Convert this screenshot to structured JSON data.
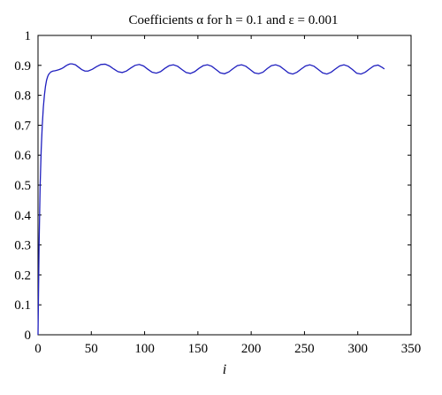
{
  "chart_data": {
    "type": "line",
    "title": "Coefficients α for h = 0.1 and ε = 0.001",
    "xlabel": "i",
    "ylabel": "",
    "xlim": [
      0,
      350
    ],
    "ylim": [
      0,
      1
    ],
    "x_ticks": [
      0,
      50,
      100,
      150,
      200,
      250,
      300,
      350
    ],
    "y_ticks": [
      0,
      0.1,
      0.2,
      0.3,
      0.4,
      0.5,
      0.6,
      0.7,
      0.8,
      0.9,
      1
    ],
    "grid": false,
    "line_color": "#1f1fbf",
    "series": [
      {
        "x": [
          0,
          1,
          2,
          3,
          4,
          5,
          6,
          7,
          8,
          9,
          10,
          12,
          14,
          16,
          18,
          20,
          22,
          24,
          26,
          28,
          30,
          32,
          35,
          38,
          41,
          44,
          47,
          51,
          55,
          59,
          63,
          67,
          71,
          75,
          79,
          83,
          87,
          91,
          95,
          99,
          103,
          107,
          111,
          115,
          119,
          123,
          127,
          131,
          135,
          139,
          143,
          147,
          151,
          155,
          159,
          163,
          167,
          171,
          175,
          179,
          183,
          187,
          191,
          195,
          199,
          203,
          207,
          211,
          215,
          219,
          223,
          227,
          231,
          235,
          239,
          243,
          247,
          251,
          255,
          259,
          263,
          267,
          271,
          275,
          279,
          283,
          287,
          291,
          295,
          299,
          303,
          307,
          311,
          315,
          319,
          323,
          325
        ],
        "values": [
          0.0,
          0.3,
          0.5,
          0.62,
          0.7,
          0.76,
          0.8,
          0.83,
          0.85,
          0.862,
          0.87,
          0.878,
          0.881,
          0.882,
          0.884,
          0.886,
          0.889,
          0.893,
          0.898,
          0.902,
          0.905,
          0.905,
          0.902,
          0.894,
          0.886,
          0.881,
          0.881,
          0.887,
          0.896,
          0.903,
          0.904,
          0.898,
          0.888,
          0.879,
          0.876,
          0.881,
          0.891,
          0.9,
          0.903,
          0.898,
          0.887,
          0.877,
          0.874,
          0.879,
          0.89,
          0.899,
          0.902,
          0.897,
          0.886,
          0.876,
          0.873,
          0.879,
          0.89,
          0.899,
          0.902,
          0.897,
          0.886,
          0.875,
          0.872,
          0.878,
          0.889,
          0.899,
          0.902,
          0.897,
          0.886,
          0.875,
          0.872,
          0.877,
          0.889,
          0.899,
          0.902,
          0.897,
          0.886,
          0.875,
          0.871,
          0.877,
          0.888,
          0.898,
          0.902,
          0.897,
          0.886,
          0.875,
          0.871,
          0.877,
          0.888,
          0.898,
          0.902,
          0.897,
          0.886,
          0.874,
          0.871,
          0.877,
          0.888,
          0.898,
          0.901,
          0.893,
          0.888
        ]
      }
    ]
  }
}
